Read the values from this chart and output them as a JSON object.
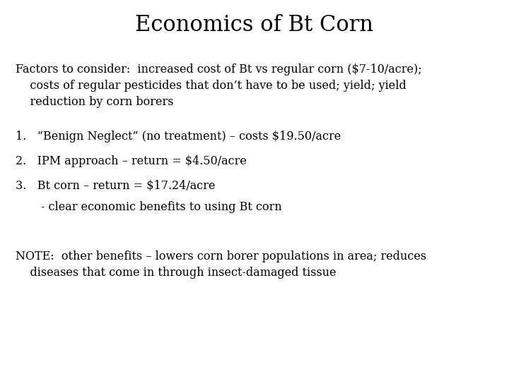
{
  "title": "Economics of Bt Corn",
  "background_color": "#ffffff",
  "text_color": "#000000",
  "title_fontsize": 22,
  "body_fontsize": 11.5,
  "font_family": "serif",
  "paragraph1_line1": "Factors to consider:  increased cost of Bt vs regular corn ($7-10/acre);",
  "paragraph1_line2": "    costs of regular pesticides that don’t have to be used; yield; yield",
  "paragraph1_line3": "    reduction by corn borers",
  "items": [
    "1.   “Benign Neglect” (no treatment) – costs $19.50/acre",
    "2.   IPM approach – return = $4.50/acre",
    "3.   Bt corn – return = $17.24/acre",
    "       - clear economic benefits to using Bt corn"
  ],
  "note_line1": "NOTE:  other benefits – lowers corn borer populations in area; reduces",
  "note_line2": "    diseases that come in through insect-damaged tissue"
}
